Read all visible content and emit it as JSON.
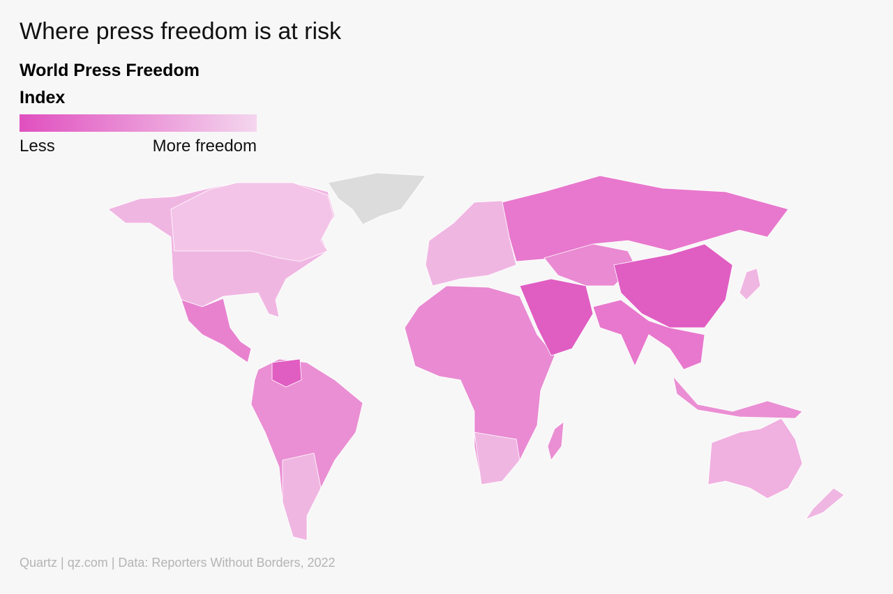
{
  "title": "Where press freedom is at risk",
  "legend": {
    "title": "World Press Freedom Index",
    "low_label": "Less",
    "high_label": "More freedom",
    "colors": [
      "#e04fbf",
      "#f4d6ee"
    ]
  },
  "source": "Quartz | qz.com | Data: Reporters Without Borders, 2022"
}
